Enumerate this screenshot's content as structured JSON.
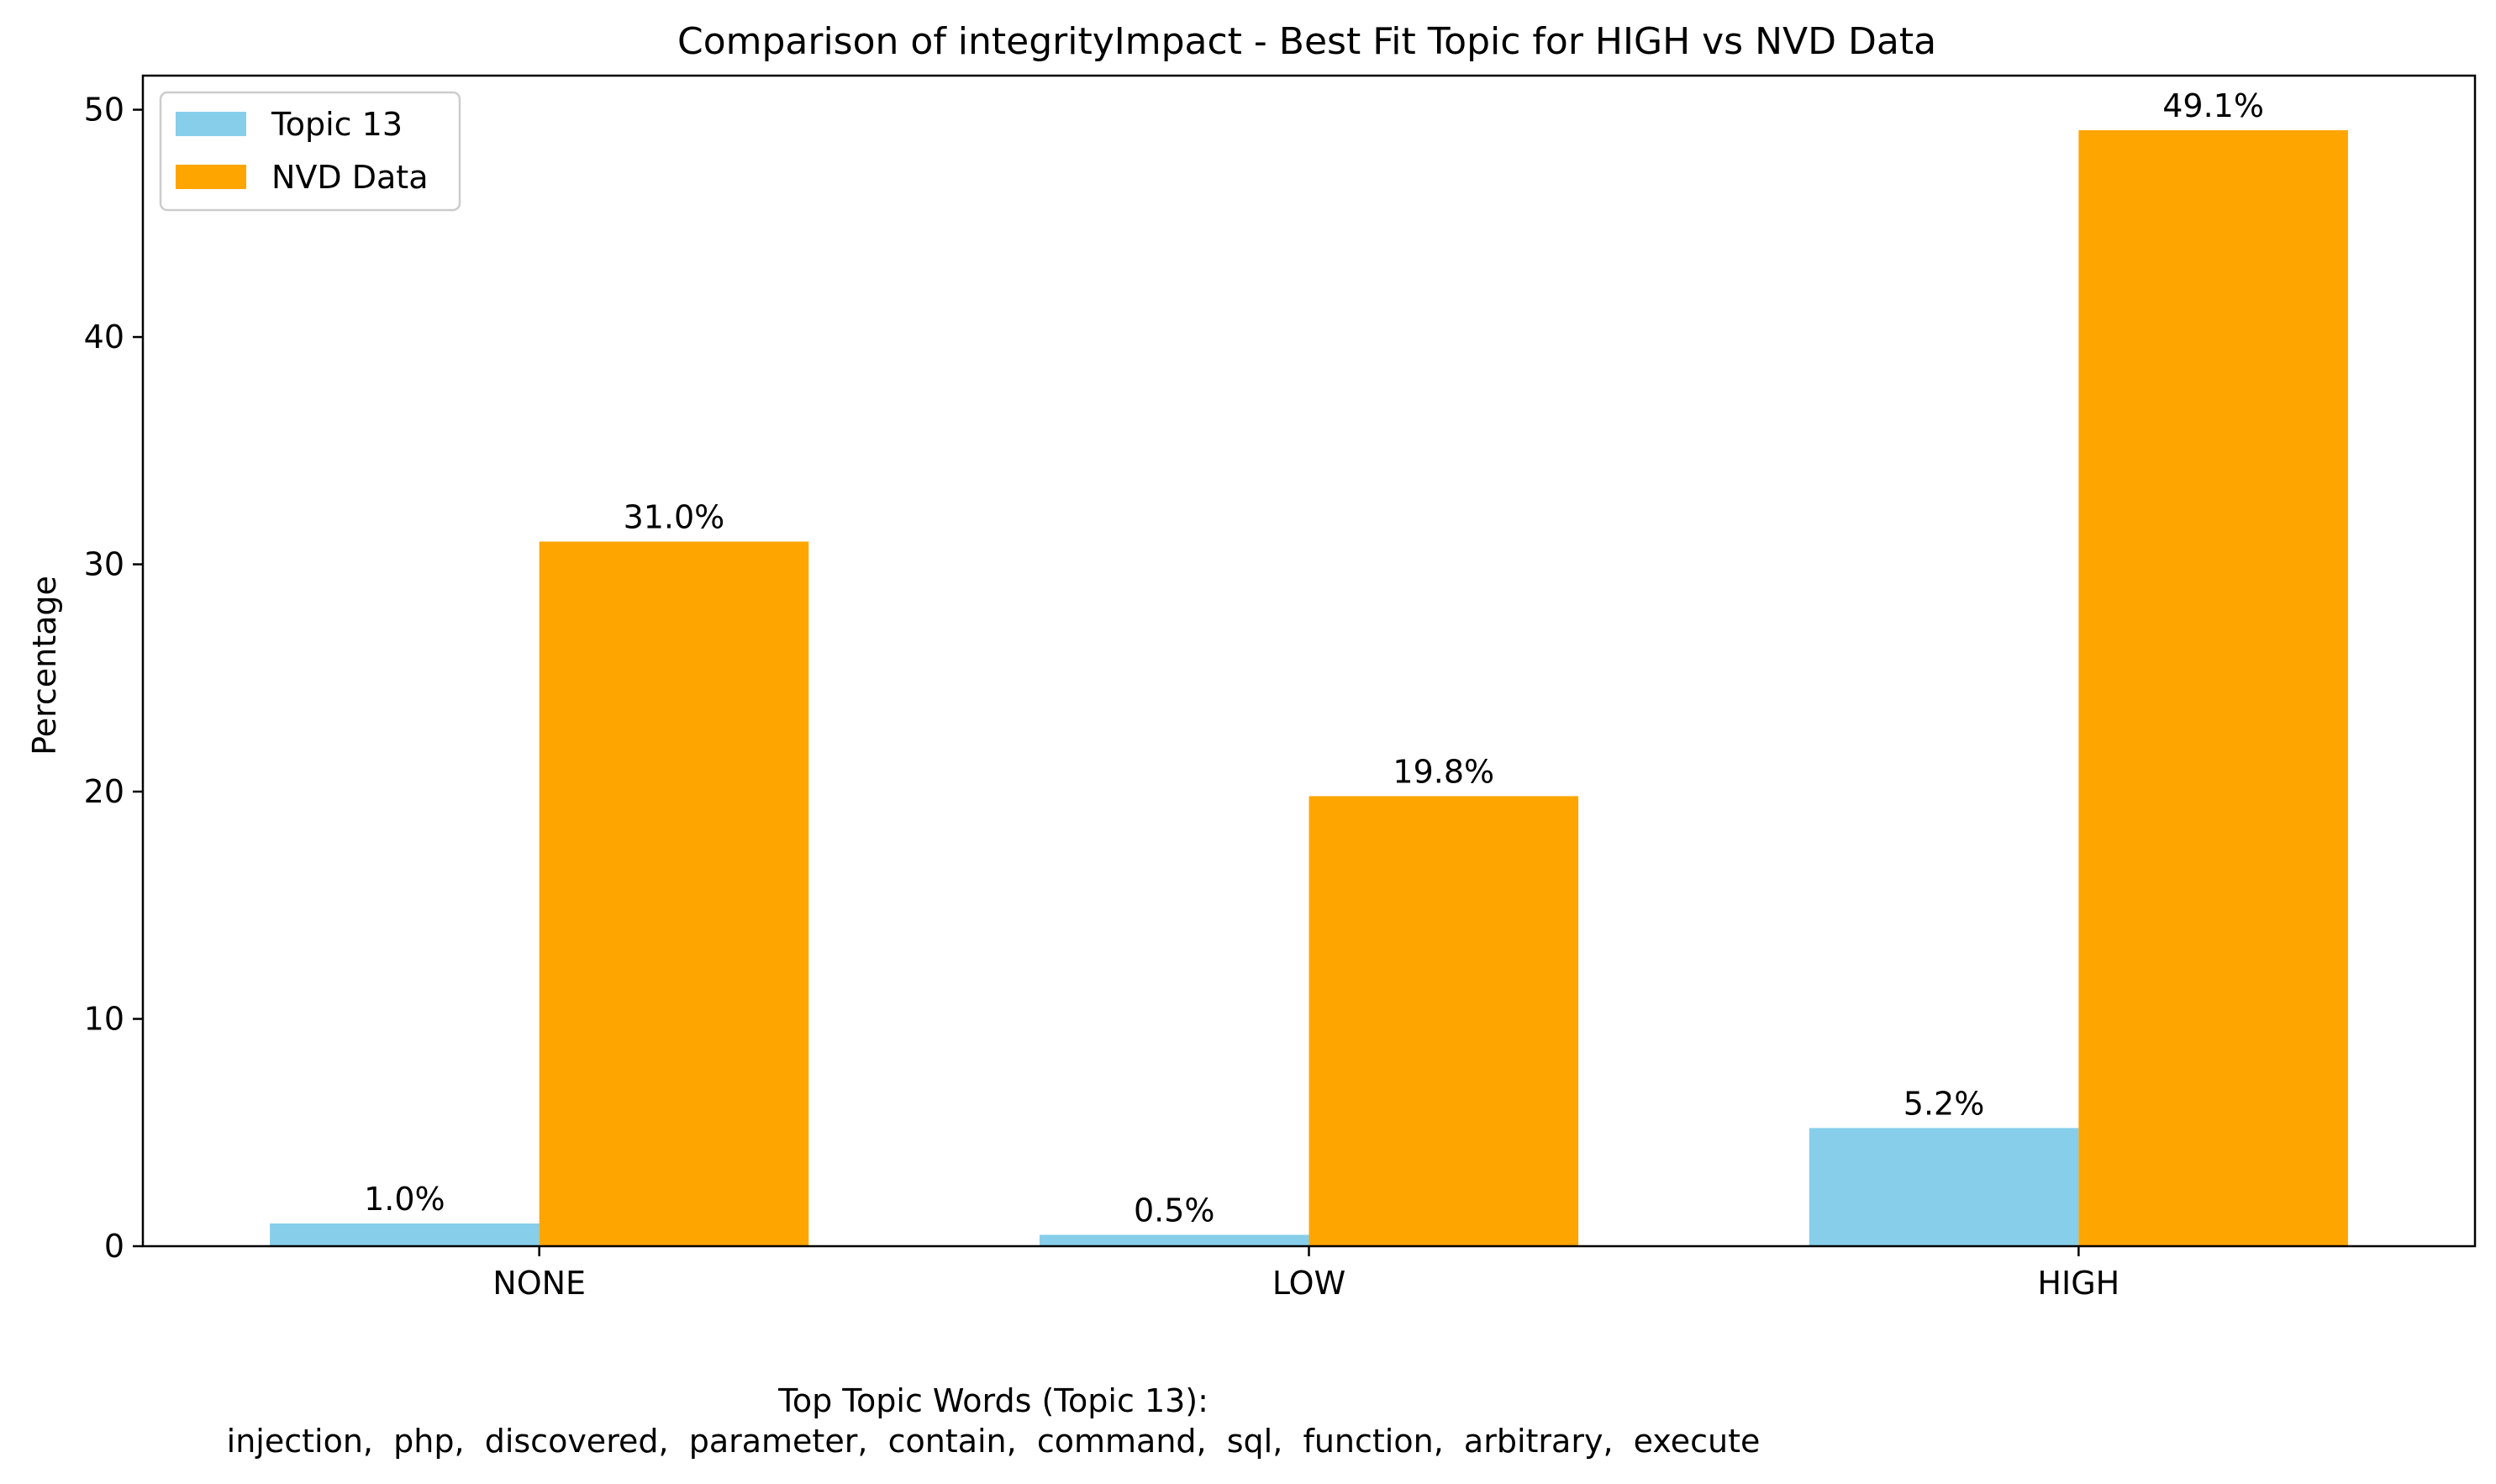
{
  "chart_data": {
    "type": "bar",
    "title": "Comparison of integrityImpact - Best Fit Topic for HIGH vs NVD Data",
    "xlabel": "",
    "ylabel": "Percentage",
    "categories": [
      "NONE",
      "LOW",
      "HIGH"
    ],
    "series": [
      {
        "name": "Topic 13",
        "values": [
          1.0,
          0.5,
          5.2
        ],
        "labels": [
          "1.0%",
          "0.5%",
          "5.2%"
        ],
        "color": "#87ceeb"
      },
      {
        "name": "NVD Data",
        "values": [
          31.0,
          19.8,
          49.1
        ],
        "labels": [
          "31.0%",
          "19.8%",
          "49.1%"
        ],
        "color": "#ffa500"
      }
    ],
    "ylim": [
      0,
      51.5
    ],
    "yticks": [
      "0",
      "10",
      "20",
      "30",
      "40",
      "50"
    ],
    "legend_position": "top-left",
    "grid": false
  },
  "footer": {
    "heading": "Top Topic Words (Topic 13):",
    "words": "injection,  php,  discovered,  parameter,  contain,  command,  sql,  function,  arbitrary,  execute"
  }
}
